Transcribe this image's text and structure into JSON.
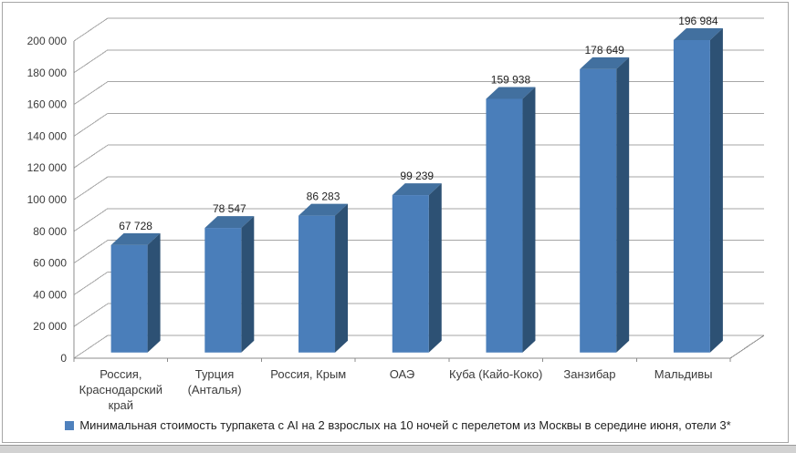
{
  "chart_data": {
    "type": "bar",
    "subtype": "3d-column",
    "title": "",
    "xlabel": "",
    "ylabel": "",
    "categories": [
      "Россия, Краснодарский край",
      "Турция (Анталья)",
      "Россия, Крым",
      "ОАЭ",
      "Куба (Кайо-Коко)",
      "Занзибар",
      "Мальдивы"
    ],
    "values": [
      67728,
      78547,
      86283,
      99239,
      159938,
      178649,
      196984
    ],
    "value_labels": [
      "67 728",
      "78 547",
      "86 283",
      "99 239",
      "159 938",
      "178 649",
      "196 984"
    ],
    "ylim": [
      0,
      200000
    ],
    "ytick_step": 20000,
    "ytick_labels": [
      "0",
      "20 000",
      "40 000",
      "60 000",
      "80 000",
      "100 000",
      "120 000",
      "140 000",
      "160 000",
      "180 000",
      "200 000"
    ],
    "grid": true,
    "legend_position": "bottom",
    "legend": "Минимальная стоимость турпакета с AI на 2 взрослых на 10 ночей с перелетом из Москвы в середине июня, отели 3*",
    "colors": {
      "bar_front": "#4a7eba",
      "bar_top": "#42709f",
      "bar_side": "#2d5174",
      "gridline": "#a6a6a6",
      "axis": "#8c8c8c",
      "tick_text": "#3b3b3b",
      "value_text": "#1f1f1f",
      "legend_marker": "#4f81bd",
      "frame_border": "#a6a6a6",
      "bottom_strip": "#d2d2d2"
    }
  }
}
